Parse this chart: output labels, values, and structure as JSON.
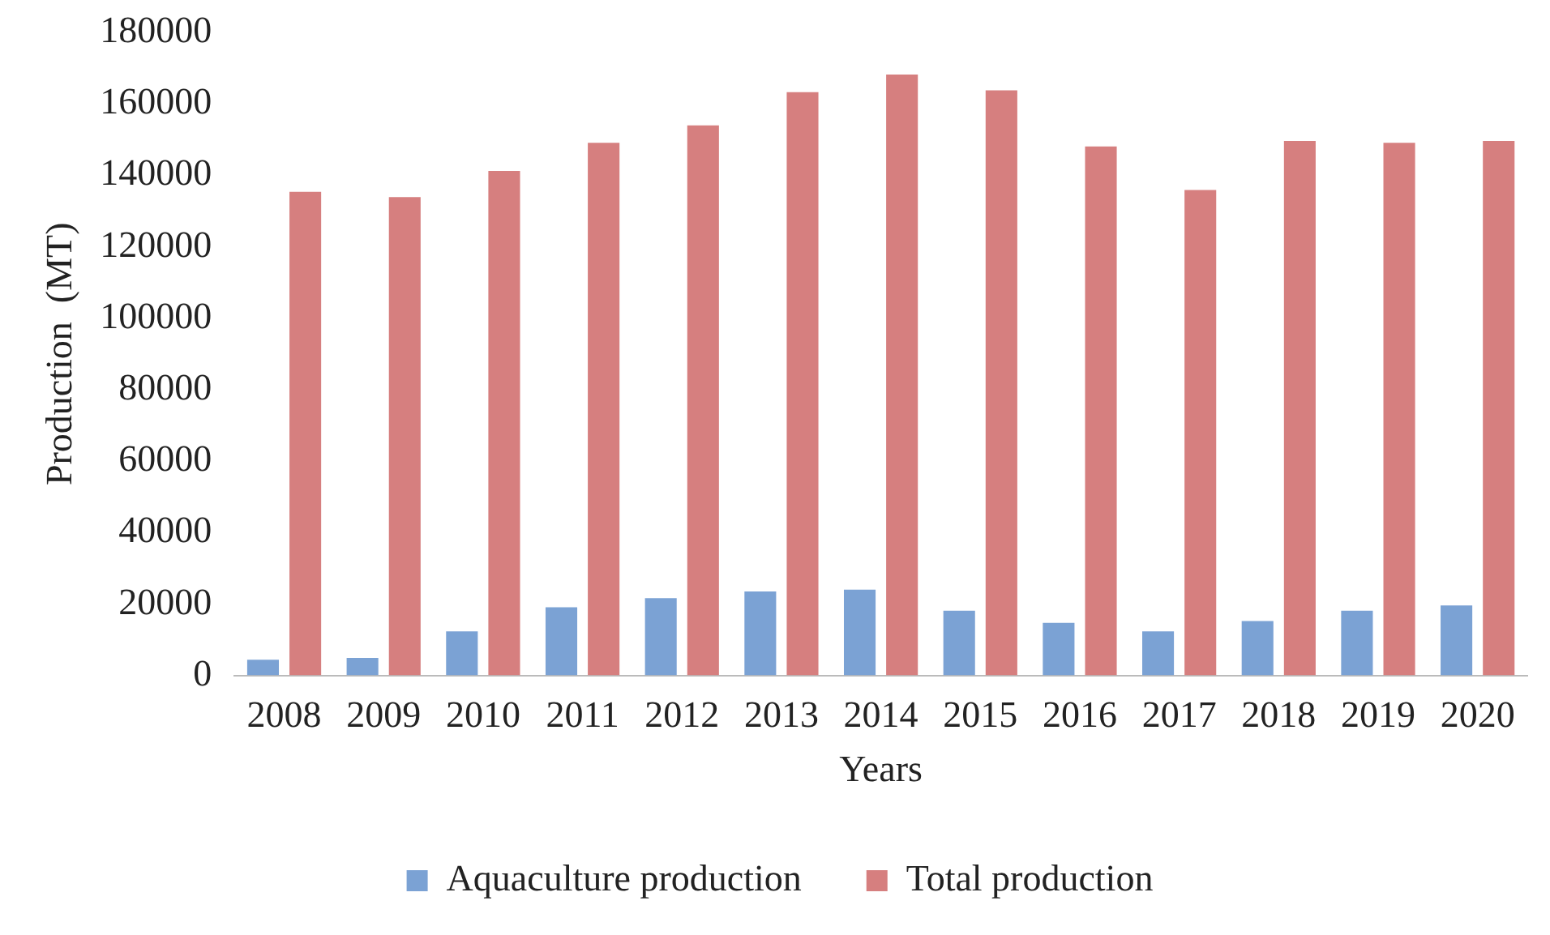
{
  "chart_data": {
    "type": "bar",
    "xlabel": "Years",
    "ylabel": "Production  (MT)",
    "categories": [
      "2008",
      "2009",
      "2010",
      "2011",
      "2012",
      "2013",
      "2014",
      "2015",
      "2016",
      "2017",
      "2018",
      "2019",
      "2020"
    ],
    "series": [
      {
        "name": "Aquaculture production",
        "color": "#7ba2d4",
        "values": [
          4400,
          4900,
          12300,
          19100,
          21600,
          23500,
          24000,
          18100,
          14700,
          12300,
          15200,
          18100,
          19600
        ]
      },
      {
        "name": "Total production",
        "color": "#d67f7f",
        "values": [
          135400,
          133900,
          141200,
          149100,
          154000,
          163300,
          168200,
          163800,
          148100,
          135900,
          149600,
          149100,
          149600
        ]
      }
    ],
    "ylim": [
      0,
      180000
    ],
    "yticks": [
      0,
      20000,
      40000,
      60000,
      80000,
      100000,
      120000,
      140000,
      160000,
      180000
    ],
    "grid": false,
    "legend": "bottom"
  }
}
